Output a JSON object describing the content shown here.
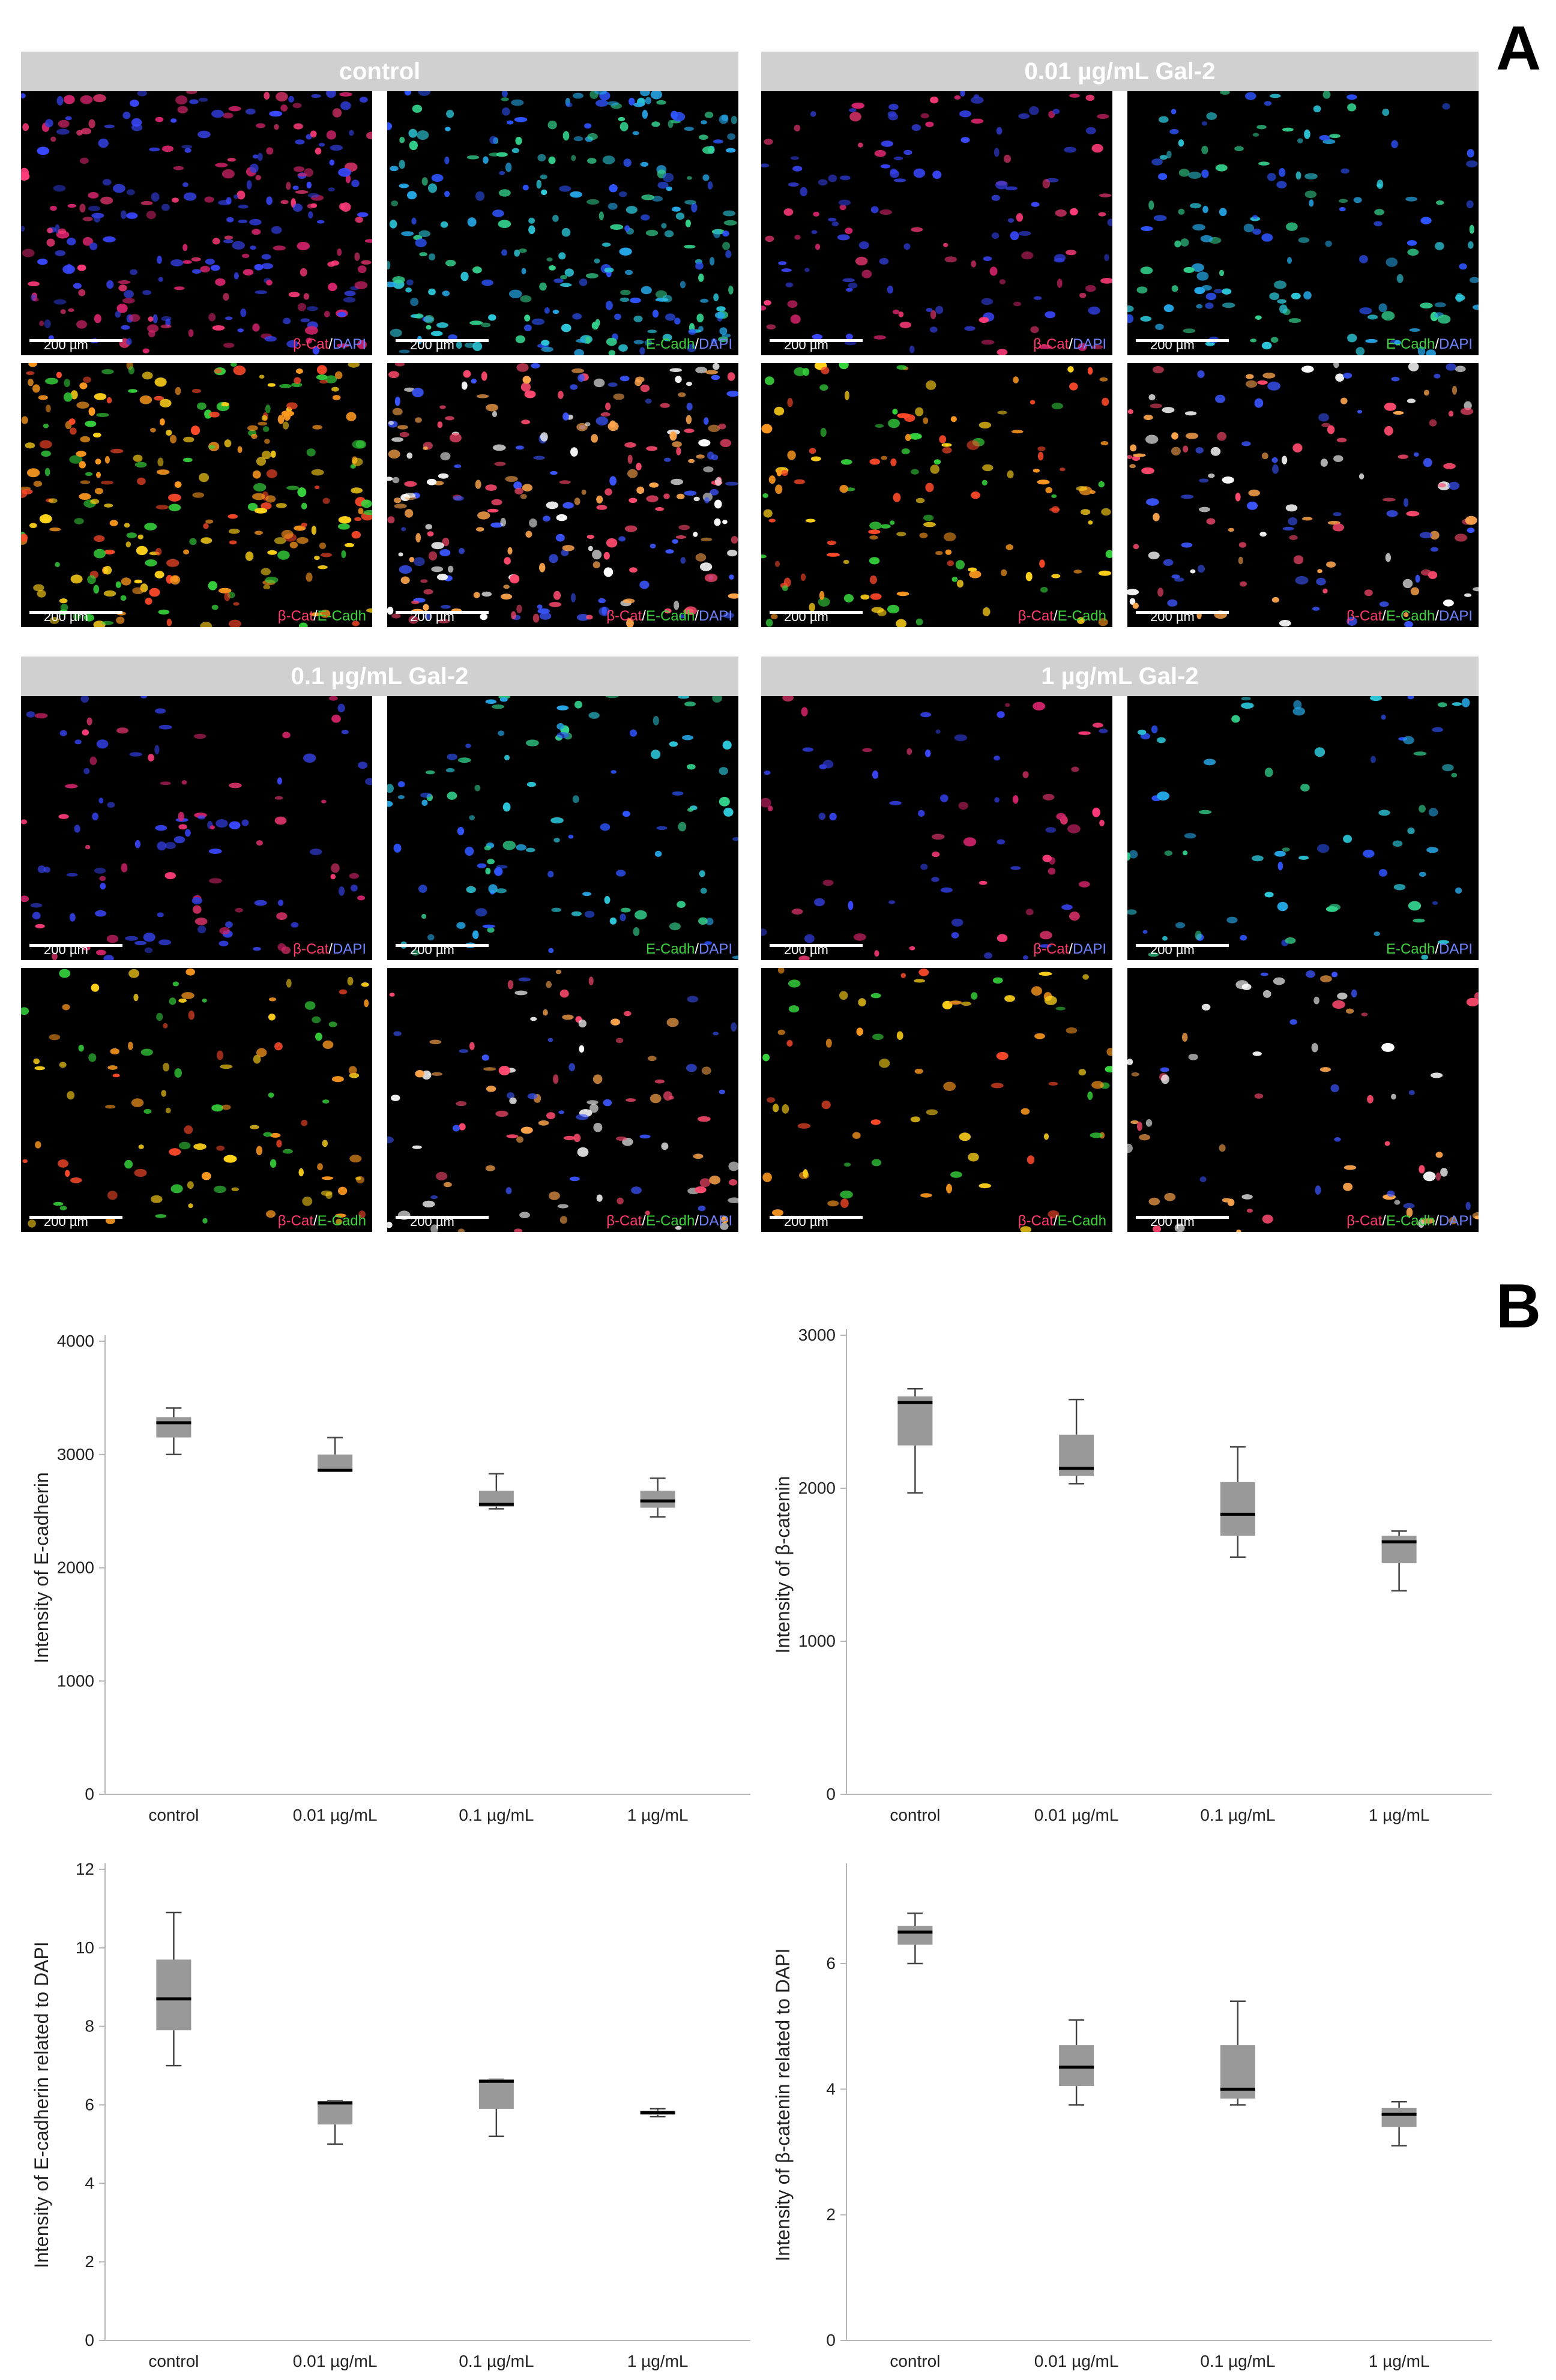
{
  "panel_labels": {
    "a": "A",
    "b": "B"
  },
  "microscopy": {
    "groups": [
      {
        "title": "control",
        "tiles": [
          {
            "scale": "200 µm",
            "stain": [
              {
                "t": "β-Cat",
                "c": "red"
              },
              {
                "t": "/",
                "c": "sep"
              },
              {
                "t": "DAPI",
                "c": "blue"
              }
            ]
          },
          {
            "scale": "200 µm",
            "stain": [
              {
                "t": "E-Cadh",
                "c": "green"
              },
              {
                "t": "/",
                "c": "sep"
              },
              {
                "t": "DAPI",
                "c": "blue"
              }
            ]
          },
          {
            "scale": "200 µm",
            "stain": [
              {
                "t": "β-Cat",
                "c": "red"
              },
              {
                "t": "/",
                "c": "sep"
              },
              {
                "t": "E-Cadh",
                "c": "green"
              }
            ]
          },
          {
            "scale": "200 µm",
            "stain": [
              {
                "t": "β-Cat",
                "c": "red"
              },
              {
                "t": "/",
                "c": "sep"
              },
              {
                "t": "E-Cadh",
                "c": "green"
              },
              {
                "t": "/",
                "c": "sep"
              },
              {
                "t": "DAPI",
                "c": "blue"
              }
            ]
          }
        ]
      },
      {
        "title": "0.01 µg/mL Gal-2",
        "tiles": [
          {
            "scale": "200 µm",
            "stain": [
              {
                "t": "β-Cat",
                "c": "red"
              },
              {
                "t": "/",
                "c": "sep"
              },
              {
                "t": "DAPI",
                "c": "blue"
              }
            ]
          },
          {
            "scale": "200 µm",
            "stain": [
              {
                "t": "E-Cadh",
                "c": "green"
              },
              {
                "t": "/",
                "c": "sep"
              },
              {
                "t": "DAPI",
                "c": "blue"
              }
            ]
          },
          {
            "scale": "200 µm",
            "stain": [
              {
                "t": "β-Cat",
                "c": "red"
              },
              {
                "t": "/",
                "c": "sep"
              },
              {
                "t": "E-Cadh",
                "c": "green"
              }
            ]
          },
          {
            "scale": "200 µm",
            "stain": [
              {
                "t": "β-Cat",
                "c": "red"
              },
              {
                "t": "/",
                "c": "sep"
              },
              {
                "t": "E-Cadh",
                "c": "green"
              },
              {
                "t": "/",
                "c": "sep"
              },
              {
                "t": "DAPI",
                "c": "blue"
              }
            ]
          }
        ]
      },
      {
        "title": "0.1 µg/mL Gal-2",
        "tiles": [
          {
            "scale": "200 µm",
            "stain": [
              {
                "t": "β-Cat",
                "c": "red"
              },
              {
                "t": "/",
                "c": "sep"
              },
              {
                "t": "DAPI",
                "c": "blue"
              }
            ]
          },
          {
            "scale": "200 µm",
            "stain": [
              {
                "t": "E-Cadh",
                "c": "green"
              },
              {
                "t": "/",
                "c": "sep"
              },
              {
                "t": "DAPI",
                "c": "blue"
              }
            ]
          },
          {
            "scale": "200 µm",
            "stain": [
              {
                "t": "β-Cat",
                "c": "red"
              },
              {
                "t": "/",
                "c": "sep"
              },
              {
                "t": "E-Cadh",
                "c": "green"
              }
            ]
          },
          {
            "scale": "200 µm",
            "stain": [
              {
                "t": "β-Cat",
                "c": "red"
              },
              {
                "t": "/",
                "c": "sep"
              },
              {
                "t": "E-Cadh",
                "c": "green"
              },
              {
                "t": "/",
                "c": "sep"
              },
              {
                "t": "DAPI",
                "c": "blue"
              }
            ]
          }
        ]
      },
      {
        "title": "1 µg/mL Gal-2",
        "tiles": [
          {
            "scale": "200 µm",
            "stain": [
              {
                "t": "β-Cat",
                "c": "red"
              },
              {
                "t": "/",
                "c": "sep"
              },
              {
                "t": "DAPI",
                "c": "blue"
              }
            ]
          },
          {
            "scale": "200 µm",
            "stain": [
              {
                "t": "E-Cadh",
                "c": "green"
              },
              {
                "t": "/",
                "c": "sep"
              },
              {
                "t": "DAPI",
                "c": "blue"
              }
            ]
          },
          {
            "scale": "200 µm",
            "stain": [
              {
                "t": "β-Cat",
                "c": "red"
              },
              {
                "t": "/",
                "c": "sep"
              },
              {
                "t": "E-Cadh",
                "c": "green"
              }
            ]
          },
          {
            "scale": "200 µm",
            "stain": [
              {
                "t": "β-Cat",
                "c": "red"
              },
              {
                "t": "/",
                "c": "sep"
              },
              {
                "t": "E-Cadh",
                "c": "green"
              },
              {
                "t": "/",
                "c": "sep"
              },
              {
                "t": "DAPI",
                "c": "blue"
              }
            ]
          }
        ]
      }
    ],
    "colors": {
      "red": "#ff3b6b",
      "green": "#3ed23e",
      "blue": "#6f83ff",
      "header": "#d0d0d0"
    }
  },
  "chart_data": [
    {
      "type": "box",
      "title": "",
      "xlabel": "",
      "ylabel": "Intensity of E-cadherin",
      "categories": [
        "control",
        "0.01 µg/mL",
        "0.1 µg/mL",
        "1 µg/mL"
      ],
      "ylim": [
        0,
        4000
      ],
      "yticks": [
        0,
        1000,
        2000,
        3000,
        4000
      ],
      "boxes": [
        {
          "min": 3000,
          "q1": 3150,
          "median": 3280,
          "q3": 3330,
          "max": 3410
        },
        {
          "min": 2860,
          "q1": 2860,
          "median": 2860,
          "q3": 3000,
          "max": 3150
        },
        {
          "min": 2520,
          "q1": 2540,
          "median": 2560,
          "q3": 2680,
          "max": 2830
        },
        {
          "min": 2450,
          "q1": 2530,
          "median": 2590,
          "q3": 2680,
          "max": 2790
        }
      ],
      "box_color": "#999999"
    },
    {
      "type": "box",
      "title": "",
      "xlabel": "",
      "ylabel": "Intensity of β-catenin",
      "categories": [
        "control",
        "0.01 µg/mL",
        "0.1 µg/mL",
        "1 µg/mL"
      ],
      "ylim": [
        0,
        3000
      ],
      "yticks": [
        0,
        1000,
        2000,
        3000
      ],
      "boxes": [
        {
          "min": 1970,
          "q1": 2280,
          "median": 2560,
          "q3": 2600,
          "max": 2650
        },
        {
          "min": 2030,
          "q1": 2080,
          "median": 2130,
          "q3": 2350,
          "max": 2580
        },
        {
          "min": 1550,
          "q1": 1690,
          "median": 1830,
          "q3": 2040,
          "max": 2270
        },
        {
          "min": 1330,
          "q1": 1510,
          "median": 1650,
          "q3": 1690,
          "max": 1720
        }
      ],
      "box_color": "#999999"
    },
    {
      "type": "box",
      "title": "",
      "xlabel": "",
      "ylabel": "Intensity of E-cadherin related to DAPI",
      "categories": [
        "control",
        "0.01 µg/mL",
        "0.1 µg/mL",
        "1 µg/mL"
      ],
      "ylim": [
        0,
        12
      ],
      "yticks": [
        0,
        2,
        4,
        6,
        8,
        10,
        12
      ],
      "boxes": [
        {
          "min": 7.0,
          "q1": 7.9,
          "median": 8.7,
          "q3": 9.7,
          "max": 10.9
        },
        {
          "min": 5.0,
          "q1": 5.5,
          "median": 6.05,
          "q3": 6.1,
          "max": 6.1
        },
        {
          "min": 5.2,
          "q1": 5.9,
          "median": 6.6,
          "q3": 6.65,
          "max": 6.65
        },
        {
          "min": 5.7,
          "q1": 5.75,
          "median": 5.8,
          "q3": 5.85,
          "max": 5.9
        }
      ],
      "box_color": "#999999"
    },
    {
      "type": "box",
      "title": "",
      "xlabel": "",
      "ylabel": "Intensity of β-catenin related to DAPI",
      "categories": [
        "control",
        "0.01 µg/mL",
        "0.1 µg/mL",
        "1 µg/mL"
      ],
      "ylim": [
        0,
        7.5
      ],
      "yticks": [
        0,
        2,
        4,
        6
      ],
      "boxes": [
        {
          "min": 6.0,
          "q1": 6.3,
          "median": 6.5,
          "q3": 6.6,
          "max": 6.8
        },
        {
          "min": 3.75,
          "q1": 4.05,
          "median": 4.35,
          "q3": 4.7,
          "max": 5.1
        },
        {
          "min": 3.75,
          "q1": 3.85,
          "median": 4.0,
          "q3": 4.7,
          "max": 5.4
        },
        {
          "min": 3.1,
          "q1": 3.4,
          "median": 3.6,
          "q3": 3.7,
          "max": 3.8
        }
      ],
      "box_color": "#999999"
    }
  ]
}
